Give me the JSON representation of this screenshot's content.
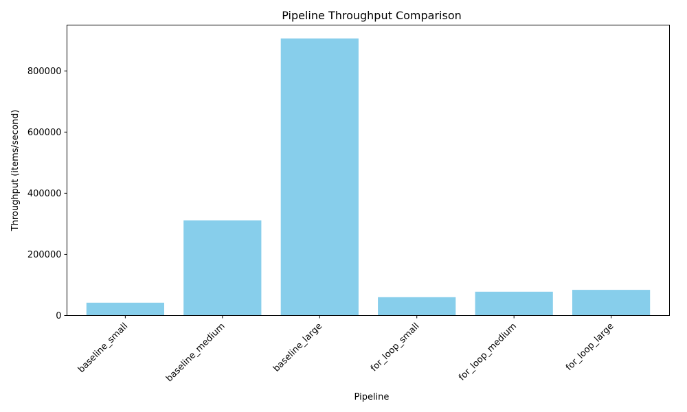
{
  "chart_data": {
    "type": "bar",
    "title": "Pipeline Throughput Comparison",
    "xlabel": "Pipeline",
    "ylabel": "Throughput (items/second)",
    "categories": [
      "baseline_small",
      "baseline_medium",
      "baseline_large",
      "for_loop_small",
      "for_loop_medium",
      "for_loop_large"
    ],
    "values": [
      42000,
      311000,
      906000,
      60000,
      78000,
      84000
    ],
    "ylim": [
      0,
      950000
    ],
    "yticks": [
      0,
      200000,
      400000,
      600000,
      800000
    ],
    "ytick_labels": [
      "0",
      "200000",
      "400000",
      "600000",
      "800000"
    ],
    "bar_color": "#87ceeb",
    "grid": false,
    "xtick_rotation": "45 degrees"
  }
}
